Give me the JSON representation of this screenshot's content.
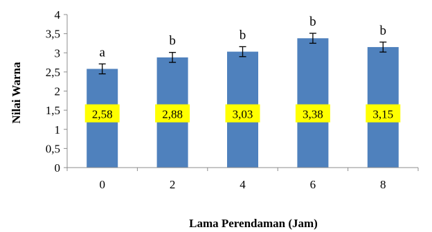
{
  "chart_data": {
    "type": "bar",
    "categories": [
      "0",
      "2",
      "4",
      "6",
      "8"
    ],
    "values": [
      2.58,
      2.88,
      3.03,
      3.38,
      3.15
    ],
    "value_labels": [
      "2,58",
      "2,88",
      "3,03",
      "3,38",
      "3,15"
    ],
    "errors": [
      0.13,
      0.13,
      0.13,
      0.13,
      0.13
    ],
    "significance_letters": [
      "a",
      "b",
      "b",
      "b",
      "b"
    ],
    "xlabel": "Lama Perendaman (Jam)",
    "ylabel": "Nilai Warna",
    "ylim": [
      0,
      4
    ],
    "yticks": [
      0,
      0.5,
      1,
      1.5,
      2,
      2.5,
      3,
      3.5,
      4
    ],
    "ytick_labels": [
      "0",
      "0,5",
      "1",
      "1,5",
      "2",
      "2,5",
      "3",
      "3,5",
      "4"
    ],
    "grid": false,
    "legend": false,
    "colors": {
      "bar": "#4f81bd",
      "label_background": "#ffff00",
      "axis": "#8c8c8c"
    }
  }
}
